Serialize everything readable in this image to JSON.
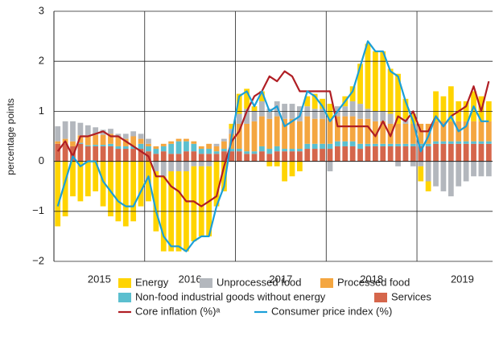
{
  "chart_data": {
    "type": "bar",
    "stacked": true,
    "y_label": "percentage points",
    "ylim": [
      -2,
      3
    ],
    "yticks": [
      {
        "value": -2,
        "label": "−2"
      },
      {
        "value": -1,
        "label": "−1"
      },
      0,
      1,
      2,
      3
    ],
    "grid": true,
    "categories": [
      null,
      null,
      null,
      null,
      null,
      "2015",
      null,
      null,
      null,
      null,
      null,
      null,
      null,
      null,
      null,
      null,
      null,
      "2016",
      null,
      null,
      null,
      null,
      null,
      null,
      null,
      null,
      null,
      null,
      null,
      "2017",
      null,
      null,
      null,
      null,
      null,
      null,
      null,
      null,
      null,
      null,
      null,
      "2018",
      null,
      null,
      null,
      null,
      null,
      null,
      null,
      null,
      null,
      null,
      null,
      "2019",
      null,
      null,
      null,
      null
    ],
    "series": [
      {
        "name": "Energy",
        "type": "bar",
        "color": "#ffd400",
        "values": [
          -1.3,
          -1.1,
          -0.7,
          -0.8,
          -0.7,
          -0.6,
          -0.9,
          -1.1,
          -1.2,
          -1.3,
          -1.2,
          -0.9,
          -0.8,
          -1.2,
          -1.5,
          -1.6,
          -1.6,
          -1.6,
          -1.5,
          -1.4,
          -1.4,
          -0.9,
          -0.6,
          0.1,
          0.4,
          0.4,
          0.1,
          0.2,
          -0.1,
          -0.1,
          -0.4,
          -0.3,
          -0.2,
          0.2,
          0.3,
          0.2,
          0.3,
          0.0,
          0.2,
          0.3,
          0.8,
          1.3,
          1.2,
          1.2,
          0.9,
          1.0,
          0.4,
          0.2,
          -0.3,
          -0.2,
          0.6,
          0.5,
          0.7,
          0.4,
          0.4,
          0.6,
          0.5,
          0.4
        ]
      },
      {
        "name": "Unprocessed food",
        "type": "bar",
        "color": "#b3b7bd",
        "values": [
          0.3,
          0.35,
          0.4,
          0.25,
          0.2,
          0.15,
          0.1,
          0.1,
          0.05,
          0.1,
          0.1,
          0.1,
          0.1,
          -0.2,
          -0.3,
          -0.2,
          -0.2,
          -0.2,
          -0.1,
          -0.1,
          -0.1,
          0.05,
          0.05,
          0.1,
          0.2,
          0.3,
          0.2,
          0.3,
          0.2,
          0.3,
          0.3,
          0.3,
          0.3,
          0.2,
          0.2,
          0.2,
          -0.2,
          0.2,
          0.2,
          0.3,
          0.3,
          0.2,
          0.2,
          0.2,
          0.2,
          -0.1,
          0.1,
          -0.1,
          -0.1,
          -0.4,
          -0.5,
          -0.6,
          -0.7,
          -0.5,
          -0.4,
          -0.3,
          -0.3,
          -0.3
        ]
      },
      {
        "name": "Processed food",
        "type": "bar",
        "color": "#f4a640",
        "values": [
          0.05,
          0.1,
          0.1,
          0.15,
          0.2,
          0.2,
          0.2,
          0.2,
          0.2,
          0.15,
          0.2,
          0.1,
          0.05,
          0.05,
          0.05,
          0.05,
          0.05,
          0.05,
          0.05,
          0.05,
          0.1,
          0.1,
          0.15,
          0.3,
          0.5,
          0.55,
          0.6,
          0.6,
          0.6,
          0.6,
          0.6,
          0.6,
          0.55,
          0.55,
          0.5,
          0.5,
          0.5,
          0.5,
          0.5,
          0.5,
          0.5,
          0.5,
          0.45,
          0.45,
          0.4,
          0.4,
          0.4,
          0.4,
          0.4,
          0.4,
          0.4,
          0.4,
          0.4,
          0.4,
          0.4,
          0.4,
          0.4,
          0.4
        ]
      },
      {
        "name": "Non-food industrial goods without energy",
        "type": "bar",
        "color": "#5bbfcf",
        "values": [
          0,
          0,
          0,
          0.02,
          0.02,
          0.03,
          0.03,
          0.05,
          0.05,
          0.05,
          0.05,
          0.1,
          0.1,
          0.1,
          0.1,
          0.2,
          0.25,
          0.2,
          0.15,
          0.1,
          0.1,
          0.05,
          0.05,
          0.05,
          0.05,
          0.05,
          0.05,
          0.1,
          0.1,
          0.1,
          0.05,
          0.05,
          0.05,
          0.1,
          0.1,
          0.1,
          0.1,
          0.1,
          0.1,
          0.1,
          0.1,
          0.05,
          0.05,
          0.05,
          0.05,
          0.05,
          0.05,
          0.05,
          0.05,
          0.05,
          0.05,
          0.05,
          0.05,
          0.05,
          0.05,
          0.05,
          0.05,
          0.05
        ]
      },
      {
        "name": "Services",
        "type": "bar",
        "color": "#d5664b",
        "values": [
          0.35,
          0.35,
          0.3,
          0.35,
          0.3,
          0.3,
          0.3,
          0.3,
          0.25,
          0.25,
          0.25,
          0.25,
          0.2,
          0.15,
          0.2,
          0.15,
          0.15,
          0.2,
          0.2,
          0.15,
          0.15,
          0.15,
          0.2,
          0.2,
          0.2,
          0.15,
          0.15,
          0.2,
          0.15,
          0.2,
          0.2,
          0.2,
          0.2,
          0.25,
          0.25,
          0.25,
          0.25,
          0.3,
          0.3,
          0.3,
          0.25,
          0.3,
          0.3,
          0.3,
          0.3,
          0.3,
          0.3,
          0.3,
          0.3,
          0.3,
          0.35,
          0.35,
          0.35,
          0.35,
          0.35,
          0.35,
          0.35,
          0.35
        ]
      },
      {
        "name": "Core inflation (%)ᵃ",
        "type": "line",
        "color": "#b01e24",
        "values": [
          0.2,
          0.4,
          0.1,
          0.5,
          0.5,
          0.55,
          0.6,
          0.5,
          0.5,
          0.4,
          0.3,
          0.2,
          0.1,
          -0.3,
          -0.3,
          -0.5,
          -0.6,
          -0.8,
          -0.8,
          -0.9,
          -0.8,
          -0.7,
          -0.1,
          0.4,
          0.6,
          1.0,
          1.3,
          1.4,
          1.7,
          1.6,
          1.8,
          1.7,
          1.4,
          1.4,
          1.4,
          1.4,
          1.4,
          0.7,
          0.7,
          0.7,
          0.7,
          0.7,
          0.5,
          0.8,
          0.5,
          0.9,
          0.8,
          1.0,
          0.6,
          0.6,
          0.9,
          0.7,
          0.9,
          1.0,
          1.1,
          1.5,
          1.0,
          1.6
        ]
      },
      {
        "name": "Consumer price index (%)",
        "type": "line",
        "color": "#1a9fd8",
        "values": [
          -0.9,
          -0.4,
          0.1,
          -0.1,
          0.0,
          0.0,
          -0.4,
          -0.6,
          -0.8,
          -0.9,
          -0.9,
          -0.6,
          -0.3,
          -1.0,
          -1.5,
          -1.7,
          -1.7,
          -1.8,
          -1.6,
          -1.5,
          -1.5,
          -0.9,
          -0.5,
          0.5,
          1.3,
          1.4,
          1.1,
          1.4,
          1.0,
          1.1,
          0.7,
          0.8,
          0.9,
          1.4,
          1.3,
          1.1,
          0.8,
          1.0,
          1.2,
          1.4,
          1.9,
          2.4,
          2.2,
          2.2,
          1.8,
          1.7,
          1.2,
          0.8,
          0.2,
          0.5,
          0.9,
          0.7,
          0.9,
          0.6,
          0.7,
          1.1,
          0.8,
          0.8
        ]
      }
    ]
  }
}
